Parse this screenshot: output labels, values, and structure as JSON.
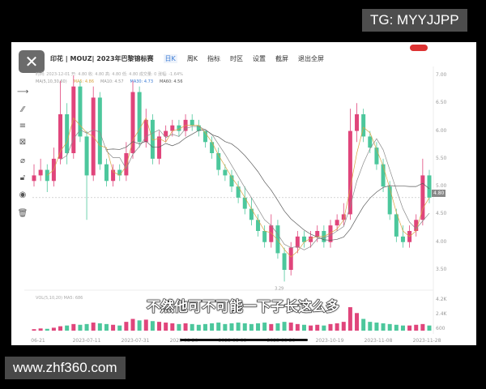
{
  "watermark_top": "TG: MYYJJPP",
  "watermark_bottom": "www.zhf360.com",
  "subtitle": "不然他可不可能一下子长这么多",
  "header": {
    "title": "印花 | MOUZ| 2023年巴黎锦标赛",
    "tabs": [
      "日K",
      "周K",
      "指标",
      "时区",
      "设置",
      "截屏",
      "退出全屏"
    ],
    "active_tab": "日K"
  },
  "info_line": "时间: 2023-12-01  开: 4.80  收: 4.80  高: 4.80  低: 4.80  成交量: 0  涨幅: -1.64%",
  "ma_line": {
    "label": "MA(5,10,30,60)",
    "ma5": "MA5: 4.86",
    "ma10": "MA10: 4.57",
    "ma30": "MA30: 4.73",
    "ma60": "MA60: 4.56"
  },
  "vol_line": "VOL(5,10,20)  MA5: 686",
  "price_tag": "4.80",
  "low_label": "3.29",
  "y_ticks": [
    "7.00",
    "6.50",
    "6.00",
    "5.50",
    "5.00",
    "4.50",
    "4.00",
    "3.50"
  ],
  "vol_ticks": [
    "4.2K",
    "2.4K",
    "600"
  ],
  "x_ticks": [
    "06-21",
    "2023-07-11",
    "2023-07-31",
    "2023-08-20",
    "2023-09-09",
    "2023-09-29",
    "2023-10-19",
    "2023-11-08",
    "2023-11-28"
  ],
  "colors": {
    "up": "#e0457b",
    "down": "#4cc79c",
    "ma5": "#d9a441",
    "ma10": "#8a8a8a",
    "ma30": "#5a5a5a"
  },
  "chart_data": {
    "type": "candlestick",
    "ylim": [
      3.2,
      7.1
    ],
    "candles": [
      [
        5.1,
        5.4,
        5.0,
        5.2,
        200
      ],
      [
        5.2,
        5.5,
        5.1,
        5.3,
        300
      ],
      [
        5.3,
        5.4,
        4.9,
        5.1,
        250
      ],
      [
        5.1,
        5.7,
        5.0,
        5.5,
        400
      ],
      [
        5.5,
        6.9,
        5.4,
        6.3,
        600
      ],
      [
        6.3,
        6.5,
        5.4,
        5.6,
        700
      ],
      [
        5.6,
        7.0,
        5.5,
        6.8,
        900
      ],
      [
        6.8,
        6.9,
        5.8,
        5.9,
        800
      ],
      [
        5.9,
        6.0,
        4.4,
        5.2,
        900
      ],
      [
        5.2,
        6.8,
        5.1,
        6.6,
        1100
      ],
      [
        6.6,
        6.7,
        5.3,
        5.4,
        1000
      ],
      [
        5.4,
        5.5,
        5.0,
        5.1,
        900
      ],
      [
        5.1,
        5.4,
        5.0,
        5.3,
        800
      ],
      [
        5.3,
        5.4,
        5.1,
        5.2,
        700
      ],
      [
        5.2,
        5.8,
        5.1,
        5.6,
        1200
      ],
      [
        5.6,
        6.9,
        5.5,
        6.7,
        1600
      ],
      [
        6.7,
        6.8,
        5.7,
        5.8,
        1400
      ],
      [
        5.8,
        6.4,
        5.7,
        6.2,
        1500
      ],
      [
        6.2,
        6.3,
        5.4,
        5.5,
        1300
      ],
      [
        5.5,
        6.0,
        5.4,
        5.9,
        1200
      ],
      [
        5.9,
        6.1,
        5.8,
        6.0,
        1100
      ],
      [
        6.0,
        6.2,
        5.9,
        6.1,
        1000
      ],
      [
        6.1,
        6.2,
        5.9,
        6.0,
        900
      ],
      [
        6.0,
        6.3,
        5.9,
        6.2,
        1000
      ],
      [
        6.2,
        6.3,
        6.0,
        6.1,
        900
      ],
      [
        6.1,
        6.2,
        5.9,
        6.0,
        800
      ],
      [
        6.0,
        6.0,
        5.7,
        5.8,
        900
      ],
      [
        5.8,
        5.9,
        5.5,
        5.6,
        1000
      ],
      [
        5.6,
        5.7,
        5.2,
        5.3,
        1100
      ],
      [
        5.3,
        5.4,
        5.1,
        5.2,
        900
      ],
      [
        5.2,
        5.3,
        4.9,
        5.0,
        1000
      ],
      [
        5.0,
        5.1,
        4.7,
        4.8,
        1100
      ],
      [
        4.8,
        5.0,
        4.5,
        4.6,
        1000
      ],
      [
        4.6,
        4.8,
        4.3,
        4.4,
        900
      ],
      [
        4.4,
        4.5,
        4.1,
        4.2,
        1000
      ],
      [
        4.2,
        4.3,
        3.9,
        4.0,
        1100
      ],
      [
        4.0,
        4.5,
        3.9,
        4.3,
        900
      ],
      [
        4.3,
        4.4,
        3.7,
        3.8,
        1000
      ],
      [
        3.8,
        3.9,
        3.29,
        3.5,
        1200
      ],
      [
        3.5,
        4.0,
        3.4,
        3.9,
        1100
      ],
      [
        3.9,
        4.2,
        3.8,
        4.1,
        900
      ],
      [
        4.1,
        4.2,
        3.9,
        4.0,
        800
      ],
      [
        4.0,
        4.2,
        3.9,
        4.1,
        700
      ],
      [
        4.1,
        4.3,
        4.0,
        4.2,
        800
      ],
      [
        4.2,
        4.3,
        3.9,
        4.0,
        700
      ],
      [
        4.0,
        4.4,
        3.9,
        4.3,
        900
      ],
      [
        4.3,
        4.5,
        4.2,
        4.4,
        1000
      ],
      [
        4.4,
        4.7,
        4.3,
        4.5,
        1200
      ],
      [
        4.5,
        6.4,
        4.4,
        6.0,
        3200
      ],
      [
        6.0,
        6.5,
        5.8,
        6.3,
        2400
      ],
      [
        6.3,
        6.4,
        5.8,
        5.9,
        1600
      ],
      [
        5.9,
        6.0,
        5.6,
        5.7,
        1200
      ],
      [
        5.7,
        5.8,
        5.3,
        5.4,
        1100
      ],
      [
        5.4,
        5.5,
        4.9,
        5.0,
        1000
      ],
      [
        5.0,
        5.1,
        4.4,
        4.5,
        900
      ],
      [
        4.5,
        4.6,
        4.0,
        4.1,
        800
      ],
      [
        4.1,
        4.3,
        3.9,
        4.0,
        700
      ],
      [
        4.0,
        4.3,
        3.9,
        4.2,
        700
      ],
      [
        4.2,
        4.5,
        4.1,
        4.4,
        800
      ],
      [
        4.4,
        5.5,
        4.3,
        5.2,
        900
      ],
      [
        5.2,
        5.3,
        4.7,
        4.8,
        700
      ]
    ]
  }
}
